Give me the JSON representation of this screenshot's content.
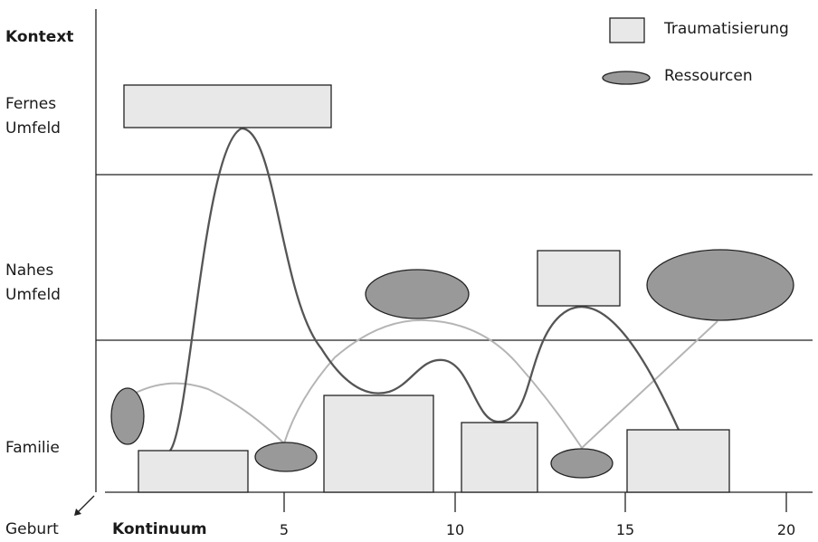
{
  "y_axis": {
    "title": "Kontext",
    "levels": [
      {
        "line1": "Fernes",
        "line2": "Umfeld"
      },
      {
        "line1": "Nahes",
        "line2": "Umfeld"
      },
      {
        "line1": "Familie",
        "line2": ""
      }
    ]
  },
  "x_axis": {
    "origin_label": "Geburt",
    "title": "Kontinuum",
    "ticks": [
      "5",
      "10",
      "15",
      "20"
    ]
  },
  "legend": {
    "trauma_label": "Traumatisierung",
    "resource_label": "Ressourcen"
  },
  "colors": {
    "trauma_fill": "#e8e8e8",
    "resource_fill": "#999999",
    "trauma_curve": "#555555",
    "resource_curve": "#b5b5b5",
    "line": "#222222"
  }
}
